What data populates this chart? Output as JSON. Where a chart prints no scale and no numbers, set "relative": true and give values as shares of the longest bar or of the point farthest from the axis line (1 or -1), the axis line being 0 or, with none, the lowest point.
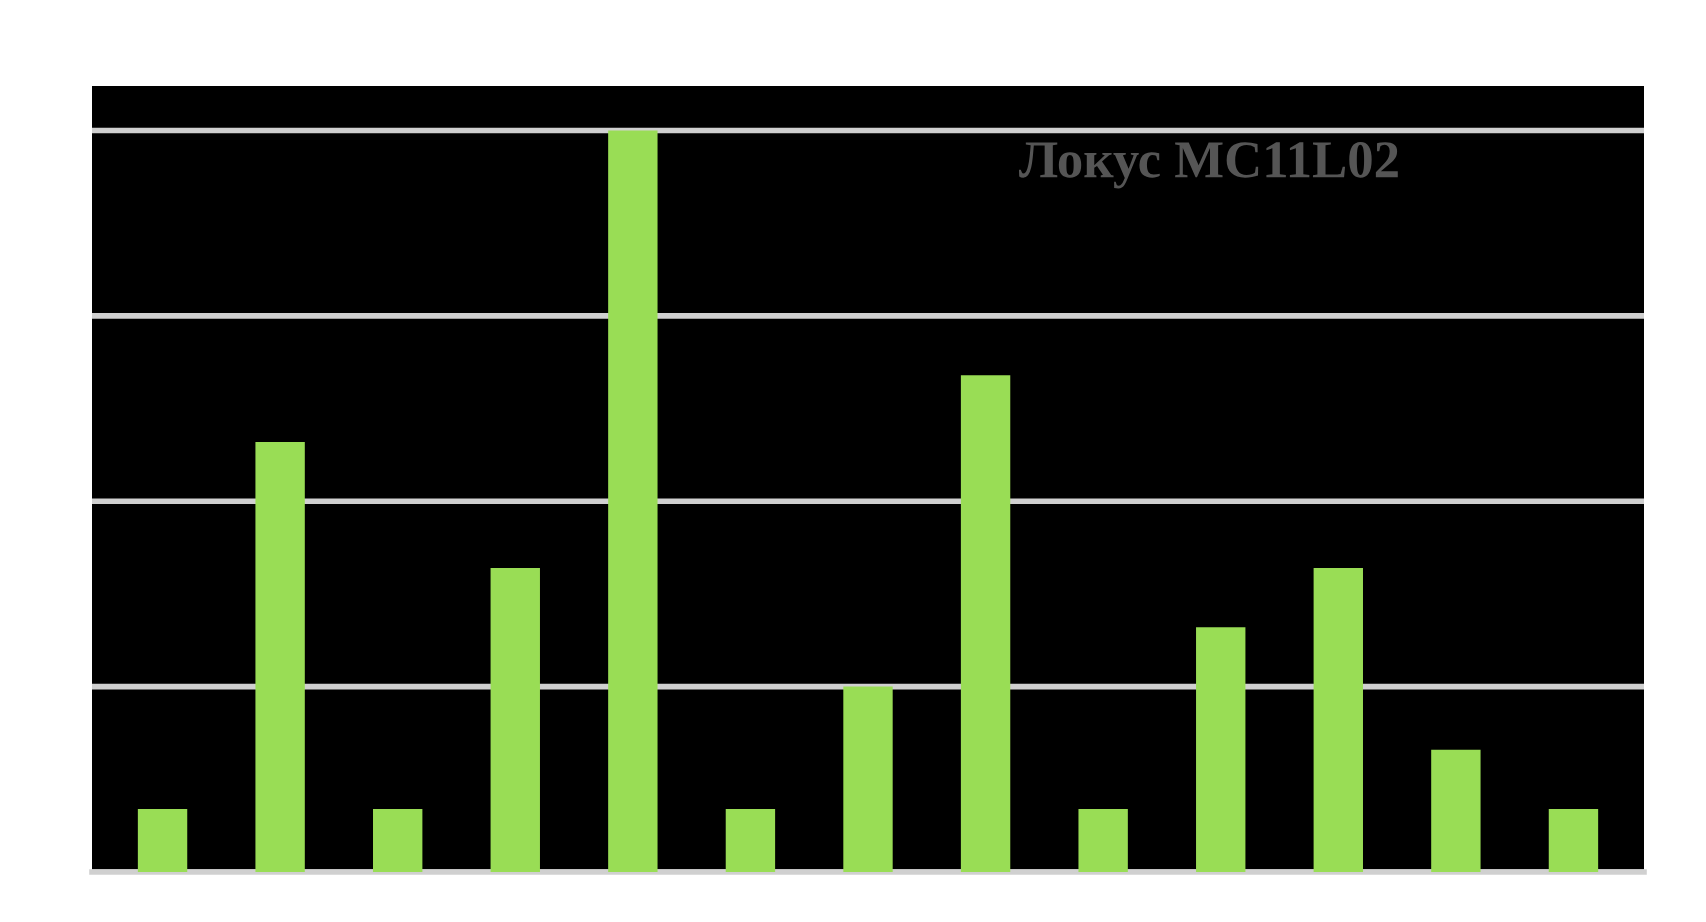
{
  "chart_data": {
    "type": "bar",
    "title": "Локус MC11L02",
    "categories": [
      null,
      null,
      null,
      null,
      null,
      null,
      null,
      null,
      null,
      null,
      null,
      null,
      null
    ],
    "values": [
      0.085,
      0.58,
      0.085,
      0.41,
      1,
      0.085,
      0.25,
      0.67,
      0.085,
      0.33,
      0.41,
      0.165,
      0.085
    ],
    "color": "#99dd55",
    "relative": true,
    "grid": "y"
  }
}
